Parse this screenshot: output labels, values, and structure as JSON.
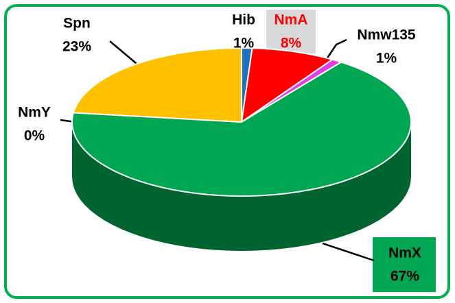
{
  "chart_data": {
    "type": "pie",
    "categories": [
      "Hib",
      "NmA",
      "Nmw135",
      "NmX",
      "NmY",
      "Spn"
    ],
    "values": [
      1,
      8,
      1,
      67,
      0,
      23
    ],
    "value_labels": [
      "1%",
      "8%",
      "1%",
      "67%",
      "0%",
      "23%"
    ],
    "colors": [
      "#1f6fbf",
      "#ff0000",
      "#e23ee2",
      "#00a651",
      "#5a5a5a",
      "#ffc000"
    ],
    "label_colors": [
      "#000000",
      "#ff0000",
      "#000000",
      "#000000",
      "#000000",
      "#000000"
    ]
  }
}
